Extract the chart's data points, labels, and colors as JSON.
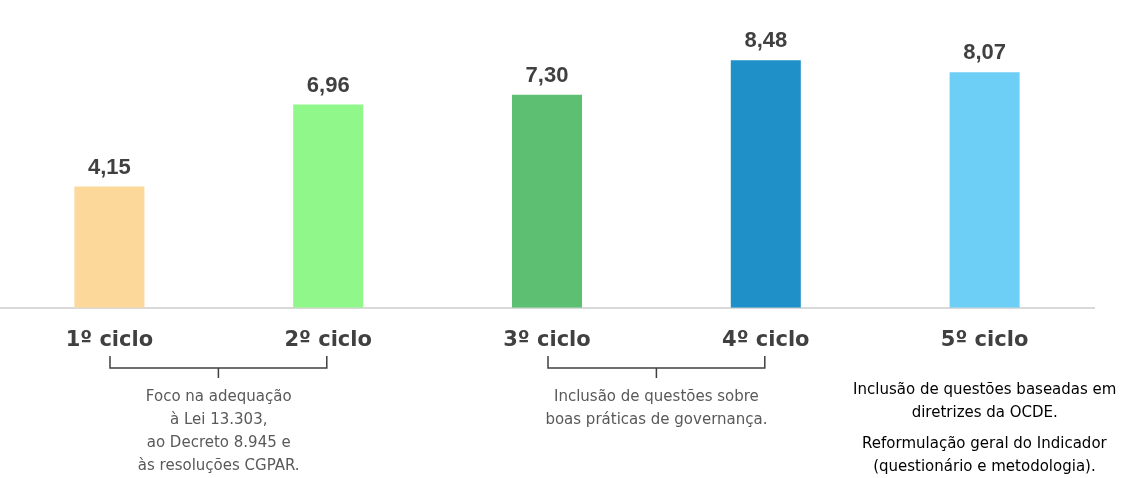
{
  "chart_data": {
    "type": "bar",
    "categories": [
      "1º ciclo",
      "2º ciclo",
      "3º ciclo",
      "4º ciclo",
      "5º ciclo"
    ],
    "values": [
      4.15,
      6.96,
      7.3,
      8.48,
      8.07
    ],
    "colors": [
      "#fcd89a",
      "#90f78a",
      "#5cbf72",
      "#1f90c8",
      "#6dcff6"
    ],
    "value_labels": [
      "4,15",
      "6,96",
      "7,30",
      "8,48",
      "8,07"
    ],
    "annotations": [
      "Foco na adequação\nà Lei 13.303,\nao Decreto 8.945 e\nàs resoluções CGPAR.",
      "Inclusão de questões sobre\nboas práticas de governança.",
      "Inclusão de questões baseadas em\ndiretrizes da OCDE.",
      "Reformulação geral do Indicador\n(questionário e metodologia)."
    ],
    "legend": false
  }
}
